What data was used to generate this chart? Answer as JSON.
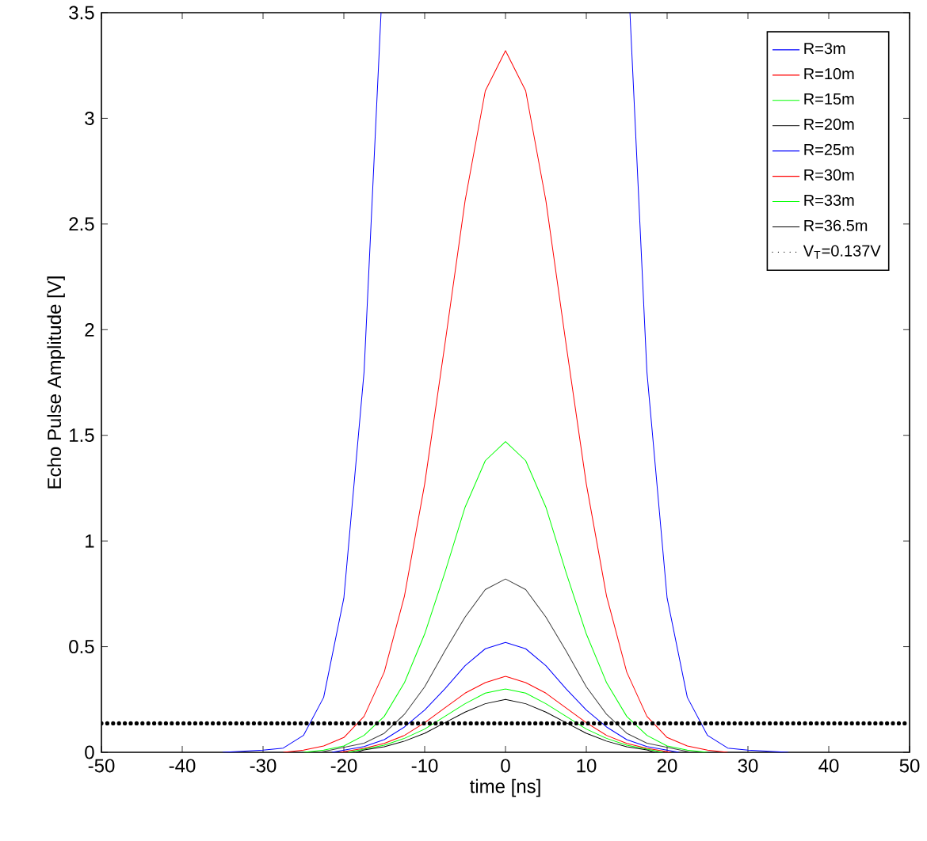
{
  "chart_data": {
    "type": "line",
    "xlabel": "time [ns]",
    "ylabel": "Echo Pulse Amplitude [V]",
    "series": [
      {
        "name": "R=3m",
        "color": "#0000ff",
        "x": [
          -35,
          -30,
          -27.5,
          -25,
          -22.5,
          -20,
          -17.5,
          -15.4,
          0,
          15.4,
          17.5,
          20,
          22.5,
          25,
          27.5,
          30,
          35
        ],
        "values": [
          0,
          0.01,
          0.02,
          0.08,
          0.26,
          0.73,
          1.8,
          3.5,
          null,
          3.5,
          1.8,
          0.73,
          0.26,
          0.08,
          0.02,
          0.01,
          0
        ]
      },
      {
        "name": "R=10m",
        "color": "#ff0000",
        "x": [
          -27.5,
          -25,
          -22.5,
          -20,
          -17.5,
          -15,
          -12.5,
          -10,
          -7.5,
          -5,
          -2.5,
          0,
          2.5,
          5,
          7.5,
          10,
          12.5,
          15,
          17.5,
          20,
          22.5,
          25,
          27.5
        ],
        "values": [
          0,
          0.01,
          0.03,
          0.07,
          0.17,
          0.38,
          0.74,
          1.27,
          1.93,
          2.61,
          3.13,
          3.32,
          3.13,
          2.61,
          1.93,
          1.27,
          0.74,
          0.38,
          0.17,
          0.07,
          0.03,
          0.01,
          0
        ]
      },
      {
        "name": "R=15m",
        "color": "#00ff00",
        "x": [
          -25,
          -22.5,
          -20,
          -17.5,
          -15,
          -12.5,
          -10,
          -7.5,
          -5,
          -2.5,
          0,
          2.5,
          5,
          7.5,
          10,
          12.5,
          15,
          17.5,
          20,
          22.5,
          25
        ],
        "values": [
          0,
          0.01,
          0.03,
          0.08,
          0.17,
          0.33,
          0.56,
          0.85,
          1.16,
          1.38,
          1.47,
          1.38,
          1.16,
          0.85,
          0.56,
          0.33,
          0.17,
          0.08,
          0.03,
          0.01,
          0
        ]
      },
      {
        "name": "R=20m",
        "color": "#404040",
        "x": [
          -23,
          -17.5,
          -15,
          -12.5,
          -10,
          -7.5,
          -5,
          -2.5,
          0,
          2.5,
          5,
          7.5,
          10,
          12.5,
          15,
          17.5,
          23
        ],
        "values": [
          0,
          0.043,
          0.09,
          0.18,
          0.31,
          0.48,
          0.64,
          0.77,
          0.82,
          0.77,
          0.64,
          0.48,
          0.31,
          0.18,
          0.09,
          0.043,
          0
        ]
      },
      {
        "name": "R=25m",
        "color": "#0000ff",
        "x": [
          -21.5,
          -17.5,
          -15,
          -12.5,
          -10,
          -7.5,
          -5,
          -2.5,
          0,
          2.5,
          5,
          7.5,
          10,
          12.5,
          15,
          17.5,
          21.5
        ],
        "values": [
          0,
          0.027,
          0.06,
          0.12,
          0.2,
          0.3,
          0.41,
          0.49,
          0.52,
          0.49,
          0.41,
          0.3,
          0.2,
          0.12,
          0.06,
          0.027,
          0
        ]
      },
      {
        "name": "R=30m",
        "color": "#ff0000",
        "x": [
          -20.5,
          -17.5,
          -15,
          -12.5,
          -10,
          -7.5,
          -5,
          -2.5,
          0,
          2.5,
          5,
          7.5,
          10,
          12.5,
          15,
          17.5,
          20.5
        ],
        "values": [
          0,
          0.019,
          0.042,
          0.08,
          0.14,
          0.21,
          0.28,
          0.33,
          0.36,
          0.33,
          0.28,
          0.21,
          0.14,
          0.08,
          0.042,
          0.019,
          0
        ]
      },
      {
        "name": "R=33m",
        "color": "#00ff00",
        "x": [
          -19.5,
          -17.5,
          -15,
          -12.5,
          -10,
          -7.5,
          -5,
          -2.5,
          0,
          2.5,
          5,
          7.5,
          10,
          12.5,
          15,
          17.5,
          19.5
        ],
        "values": [
          0,
          0.015,
          0.034,
          0.066,
          0.11,
          0.17,
          0.23,
          0.28,
          0.3,
          0.28,
          0.23,
          0.17,
          0.11,
          0.066,
          0.034,
          0.015,
          0
        ]
      },
      {
        "name": "R=36.5m",
        "color": "#000000",
        "x": [
          -18.5,
          -17.5,
          -15,
          -12.5,
          -10,
          -7.5,
          -5,
          -2.5,
          0,
          2.5,
          5,
          7.5,
          10,
          12.5,
          15,
          17.5,
          18.5
        ],
        "values": [
          0,
          0.011,
          0.026,
          0.053,
          0.09,
          0.14,
          0.19,
          0.23,
          0.25,
          0.23,
          0.19,
          0.14,
          0.09,
          0.053,
          0.026,
          0.011,
          0
        ]
      }
    ],
    "ref_lines": [
      {
        "axis": "y",
        "value": 0.137,
        "label": "V$_{T}$=0.137V",
        "color": "#000000",
        "line_style": "dotted"
      }
    ],
    "xlim": [
      -50,
      50
    ],
    "ylim": [
      0,
      3.5
    ],
    "xticks": [
      -50,
      -40,
      -30,
      -20,
      -10,
      0,
      10,
      20,
      30,
      40,
      50
    ],
    "yticks": [
      0,
      0.5,
      1,
      1.5,
      2,
      2.5,
      3,
      3.5
    ],
    "legend": "top right",
    "grid": false,
    "marker": "none",
    "line_style": "solid"
  }
}
